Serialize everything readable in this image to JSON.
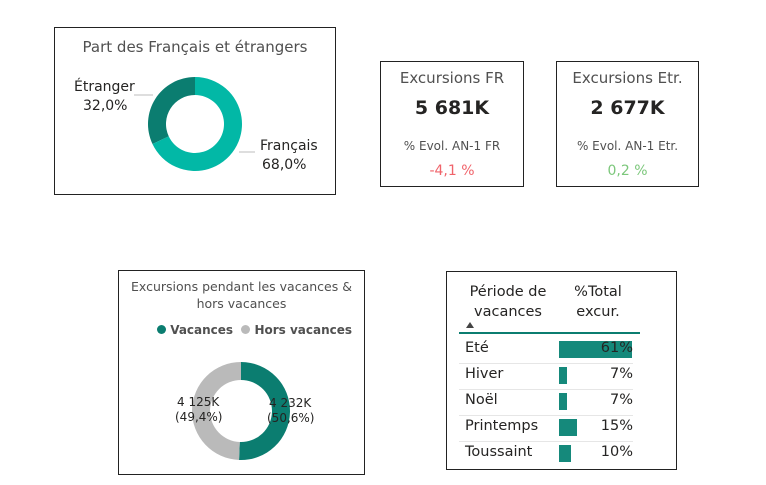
{
  "colors": {
    "teal_dark": "#0b7d70",
    "teal_light": "#02b8a6",
    "grey": "#bababa",
    "negative": "#f0636a",
    "positive": "#7cc77b",
    "bar": "#15897b"
  },
  "donut1": {
    "title": "Part des Français et étrangers",
    "labels": [
      {
        "name": "Étranger",
        "pct": "32,0%"
      },
      {
        "name": "Français",
        "pct": "68,0%"
      }
    ]
  },
  "kpi_fr": {
    "title": "Excursions FR",
    "value": "5 681K",
    "sub": "% Evol. AN-1 FR",
    "evol": "-4,1 %"
  },
  "kpi_etr": {
    "title": "Excursions Etr.",
    "value": "2 677K",
    "sub": "% Evol. AN-1 Etr.",
    "evol": "0,2 %"
  },
  "donut2": {
    "title_line1": "Excursions pendant les vacances &",
    "title_line2": "hors vacances",
    "legend": [
      "Vacances",
      "Hors vacances"
    ],
    "labels": [
      {
        "value": "4 125K",
        "pct": "(49,4%)"
      },
      {
        "value": "4 232K",
        "pct": "(50,6%)"
      }
    ]
  },
  "table": {
    "col1_line1": "Période de",
    "col1_line2": "vacances",
    "col2_line1": "%Total",
    "col2_line2": "excur.",
    "rows": [
      {
        "label": "Eté",
        "value": "61%"
      },
      {
        "label": "Hiver",
        "value": "7%"
      },
      {
        "label": "Noël",
        "value": "7%"
      },
      {
        "label": "Printemps",
        "value": "15%"
      },
      {
        "label": "Toussaint",
        "value": "10%"
      }
    ]
  },
  "chart_data": [
    {
      "type": "pie",
      "title": "Part des Français et étrangers",
      "categories": [
        "Étranger",
        "Français"
      ],
      "values": [
        32.0,
        68.0
      ],
      "donut": true
    },
    {
      "type": "pie",
      "title": "Excursions pendant les vacances & hors vacances",
      "categories": [
        "Hors vacances",
        "Vacances"
      ],
      "values": [
        4125,
        4232
      ],
      "percent": [
        49.4,
        50.6
      ],
      "donut": true,
      "legend": "top"
    },
    {
      "type": "bar",
      "title": "",
      "categories": [
        "Eté",
        "Hiver",
        "Noël",
        "Printemps",
        "Toussaint"
      ],
      "values": [
        61,
        7,
        7,
        15,
        10
      ],
      "orientation": "horizontal"
    }
  ]
}
